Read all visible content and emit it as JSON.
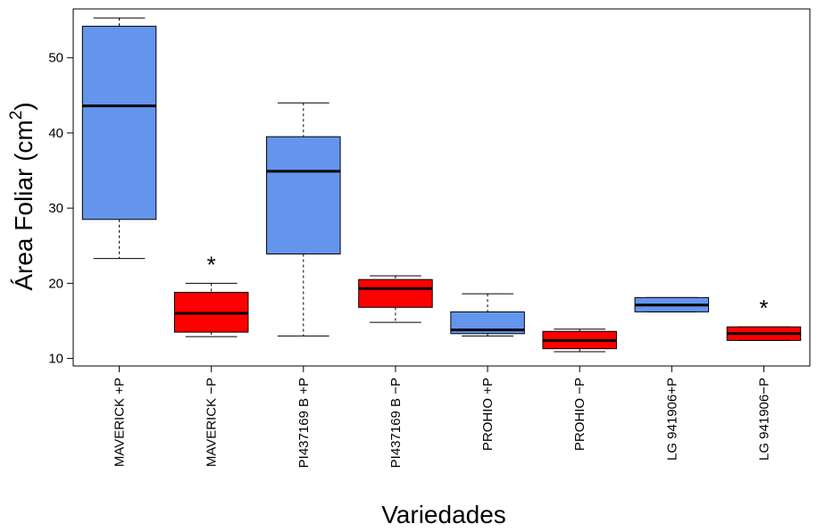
{
  "chart_data": {
    "type": "boxplot",
    "xlabel": "Variedades",
    "ylabel": {
      "text": "Área Foliar (cm",
      "superscript": "2",
      "suffix": ")"
    },
    "ylim": [
      9,
      56.5
    ],
    "yticks": [
      10,
      20,
      30,
      40,
      50
    ],
    "colors": {
      "plus_p": "#6495ED",
      "minus_p": "#FF0000",
      "median": "#000000"
    },
    "categories": [
      {
        "label": "MAVERICK +P",
        "color": "plus_p",
        "min": 23.3,
        "q1": 28.5,
        "median": 43.6,
        "q3": 54.2,
        "max": 55.3,
        "marker": ""
      },
      {
        "label": "MAVERICK −P",
        "color": "minus_p",
        "min": 12.9,
        "q1": 13.5,
        "median": 16.0,
        "q3": 18.8,
        "max": 20.0,
        "marker": "*"
      },
      {
        "label": "PI437169 B +P",
        "color": "plus_p",
        "min": 13.0,
        "q1": 23.9,
        "median": 34.9,
        "q3": 39.5,
        "max": 44.0,
        "marker": ""
      },
      {
        "label": "PI437169 B −P",
        "color": "minus_p",
        "min": 14.8,
        "q1": 16.8,
        "median": 19.3,
        "q3": 20.5,
        "max": 21.0,
        "marker": ""
      },
      {
        "label": "PROHIO +P",
        "color": "plus_p",
        "min": 13.0,
        "q1": 13.3,
        "median": 13.8,
        "q3": 16.2,
        "max": 18.6,
        "marker": ""
      },
      {
        "label": "PROHIO −P",
        "color": "minus_p",
        "min": 10.9,
        "q1": 11.3,
        "median": 12.4,
        "q3": 13.6,
        "max": 13.9,
        "marker": ""
      },
      {
        "label": "LG 941906+P",
        "color": "plus_p",
        "min": 16.2,
        "q1": 16.2,
        "median": 17.1,
        "q3": 18.1,
        "max": 18.1,
        "marker": ""
      },
      {
        "label": "LG 941906−P",
        "color": "minus_p",
        "min": 12.4,
        "q1": 12.4,
        "median": 13.3,
        "q3": 14.2,
        "max": 14.2,
        "marker": "*"
      }
    ]
  }
}
